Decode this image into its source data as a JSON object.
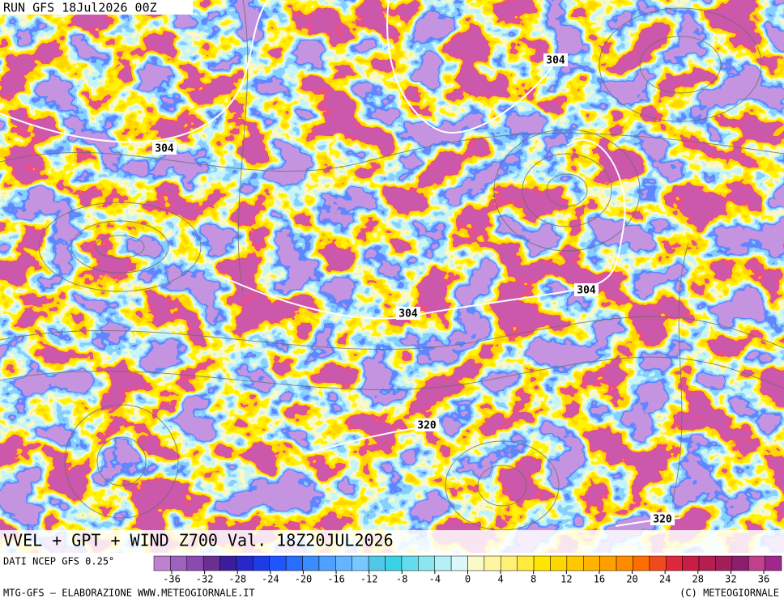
{
  "header": {
    "run": "RUN GFS 18Jul2026 00Z"
  },
  "map": {
    "title": "VVEL + GPT + WIND Z700 Val. 18Z20JUL2026",
    "contour_labels": [
      304,
      304,
      304,
      304,
      320,
      320
    ]
  },
  "colorbar": {
    "source": "DATI NCEP GFS 0.25°",
    "colors": [
      "#c080d0",
      "#a060c0",
      "#8a4ab0",
      "#6a3090",
      "#3c1e9c",
      "#2828c8",
      "#1e3ce6",
      "#1e55ff",
      "#2a6eff",
      "#3c8cff",
      "#50a0ff",
      "#64b4ff",
      "#78c8ff",
      "#50c8e6",
      "#3cd2e6",
      "#64dcec",
      "#8ce6f0",
      "#b4f0f5",
      "#dcf8fa",
      "#fafac8",
      "#fff5a0",
      "#fff078",
      "#ffeb3c",
      "#ffe600",
      "#ffd700",
      "#ffc800",
      "#ffb400",
      "#ffa000",
      "#ff8c00",
      "#ff6e00",
      "#f04a1e",
      "#e0283c",
      "#c81e46",
      "#b41e50",
      "#a01e5a",
      "#8c1e6e",
      "#c0408a",
      "#a0288c"
    ],
    "ticks": [
      -36,
      -32,
      -28,
      -24,
      -20,
      -16,
      -12,
      -8,
      -4,
      0,
      4,
      8,
      12,
      16,
      20,
      24,
      28,
      32,
      36
    ]
  },
  "footer": {
    "left": "MTG-GFS — ELABORAZIONE WWW.METEOGIORNALE.IT",
    "right": "(C) METEOGIORNALE"
  }
}
